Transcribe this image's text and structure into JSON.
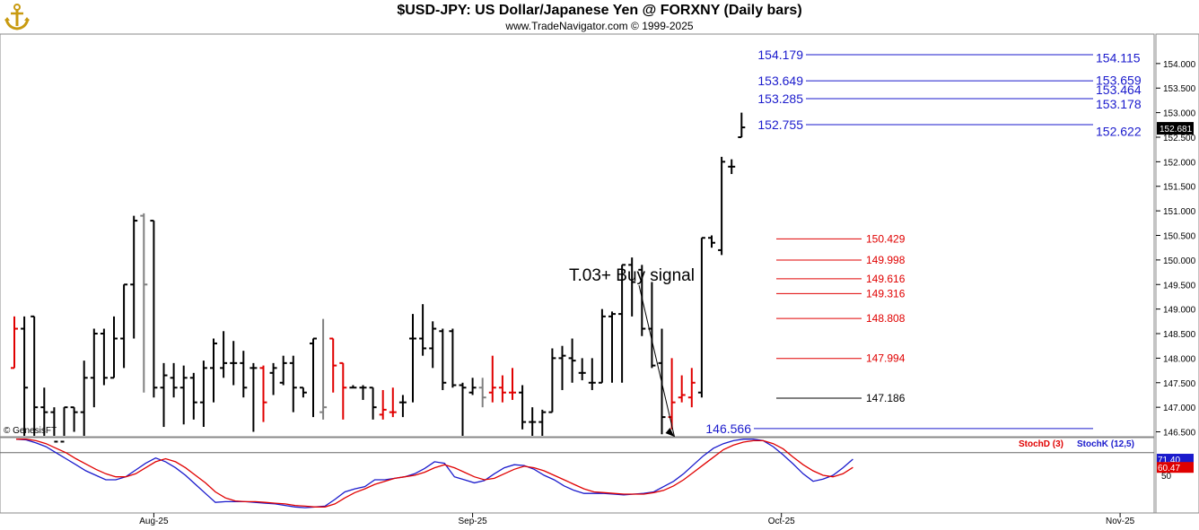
{
  "header": {
    "title": "$USD-JPY:  US Dollar/Japanese Yen @ FORXNY  (Daily bars)",
    "subtitle": "www.TradeNavigator.com © 1999-2025",
    "logo_icon": "trade-navigator-anchor-logo"
  },
  "chart_data": [
    {
      "type": "ohlc",
      "title": "$USD-JPY:  US Dollar/Japanese Yen @ FORXNY  (Daily bars)",
      "watermark": "© GenesisFT",
      "x_ticks": [
        "Aug-25",
        "Sep-25",
        "Oct-25",
        "Nov-25"
      ],
      "y_ticks": [
        "146.500",
        "147.000",
        "147.500",
        "148.000",
        "148.500",
        "149.000",
        "149.500",
        "150.000",
        "150.500",
        "151.000",
        "151.500",
        "152.000",
        "152.500",
        "153.000",
        "153.500",
        "154.000"
      ],
      "ylim": [
        146.4,
        154.6
      ],
      "last_price": "152.681",
      "colors": {
        "up": "#000000",
        "down_signal": "#e00000",
        "neutral": "#808080",
        "fib": "#1a1acc",
        "target": "#e00000"
      },
      "bars": [
        {
          "o": 147.8,
          "h": 148.85,
          "l": 147.8,
          "c": 148.6,
          "color": "red"
        },
        {
          "o": 148.6,
          "h": 148.85,
          "l": 146.2,
          "c": 147.4,
          "color": "black"
        },
        {
          "o": 148.85,
          "h": 148.85,
          "l": 146.2,
          "c": 147.0,
          "color": "black"
        },
        {
          "o": 147.0,
          "h": 147.4,
          "l": 146.3,
          "c": 146.9,
          "color": "black"
        },
        {
          "o": 146.9,
          "h": 147.0,
          "l": 145.9,
          "c": 146.3,
          "color": "black"
        },
        {
          "o": 146.3,
          "h": 147.0,
          "l": 146.3,
          "c": 147.0,
          "color": "black"
        },
        {
          "o": 147.0,
          "h": 147.0,
          "l": 146.5,
          "c": 146.9,
          "color": "black"
        },
        {
          "o": 146.9,
          "h": 147.95,
          "l": 146.4,
          "c": 147.6,
          "color": "black"
        },
        {
          "o": 147.6,
          "h": 148.6,
          "l": 147.0,
          "c": 148.5,
          "color": "black"
        },
        {
          "o": 148.5,
          "h": 148.6,
          "l": 147.45,
          "c": 147.6,
          "color": "black"
        },
        {
          "o": 147.6,
          "h": 148.85,
          "l": 147.6,
          "c": 148.4,
          "color": "black"
        },
        {
          "o": 148.4,
          "h": 149.5,
          "l": 147.8,
          "c": 149.5,
          "color": "black"
        },
        {
          "o": 149.5,
          "h": 150.9,
          "l": 148.4,
          "c": 150.8,
          "color": "black"
        },
        {
          "o": 150.9,
          "h": 150.95,
          "l": 147.3,
          "c": 149.5,
          "color": "gray"
        },
        {
          "o": 150.8,
          "h": 150.8,
          "l": 147.2,
          "c": 147.4,
          "color": "black"
        },
        {
          "o": 147.4,
          "h": 147.9,
          "l": 146.6,
          "c": 147.65,
          "color": "black"
        },
        {
          "o": 147.6,
          "h": 147.9,
          "l": 147.2,
          "c": 147.4,
          "color": "black"
        },
        {
          "o": 147.4,
          "h": 147.85,
          "l": 146.65,
          "c": 147.6,
          "color": "black"
        },
        {
          "o": 147.6,
          "h": 147.7,
          "l": 146.75,
          "c": 147.1,
          "color": "black"
        },
        {
          "o": 147.1,
          "h": 147.95,
          "l": 146.6,
          "c": 147.8,
          "color": "black"
        },
        {
          "o": 147.8,
          "h": 148.4,
          "l": 147.1,
          "c": 148.3,
          "color": "black"
        },
        {
          "o": 147.8,
          "h": 148.55,
          "l": 147.6,
          "c": 147.9,
          "color": "black"
        },
        {
          "o": 147.9,
          "h": 148.35,
          "l": 147.45,
          "c": 147.9,
          "color": "black"
        },
        {
          "o": 147.9,
          "h": 148.15,
          "l": 147.2,
          "c": 147.4,
          "color": "black"
        },
        {
          "o": 147.8,
          "h": 147.9,
          "l": 146.5,
          "c": 147.8,
          "color": "black"
        },
        {
          "o": 147.8,
          "h": 147.85,
          "l": 146.7,
          "c": 147.1,
          "color": "red"
        },
        {
          "o": 147.7,
          "h": 147.9,
          "l": 147.25,
          "c": 147.8,
          "color": "black"
        },
        {
          "o": 147.5,
          "h": 148.05,
          "l": 147.45,
          "c": 147.9,
          "color": "black"
        },
        {
          "o": 147.9,
          "h": 148.05,
          "l": 146.9,
          "c": 147.4,
          "color": "black"
        },
        {
          "o": 147.4,
          "h": 147.4,
          "l": 147.2,
          "c": 147.3,
          "color": "black"
        },
        {
          "o": 148.3,
          "h": 148.4,
          "l": 146.8,
          "c": 148.4,
          "color": "black"
        },
        {
          "o": 146.9,
          "h": 148.8,
          "l": 146.75,
          "c": 147.0,
          "color": "gray"
        },
        {
          "o": 148.4,
          "h": 148.4,
          "l": 147.3,
          "c": 147.85,
          "color": "red"
        },
        {
          "o": 147.9,
          "h": 147.9,
          "l": 146.75,
          "c": 147.4,
          "color": "red"
        },
        {
          "o": 147.4,
          "h": 147.45,
          "l": 147.4,
          "c": 147.4,
          "color": "black"
        },
        {
          "o": 147.4,
          "h": 147.45,
          "l": 147.15,
          "c": 147.4,
          "color": "black"
        },
        {
          "o": 147.4,
          "h": 147.4,
          "l": 146.75,
          "c": 147.0,
          "color": "black"
        },
        {
          "o": 146.85,
          "h": 147.35,
          "l": 146.75,
          "c": 146.95,
          "color": "red"
        },
        {
          "o": 146.9,
          "h": 147.4,
          "l": 146.8,
          "c": 146.9,
          "color": "red"
        },
        {
          "o": 147.1,
          "h": 147.25,
          "l": 146.8,
          "c": 147.1,
          "color": "black"
        },
        {
          "o": 148.4,
          "h": 148.9,
          "l": 147.1,
          "c": 148.4,
          "color": "black"
        },
        {
          "o": 148.4,
          "h": 149.1,
          "l": 148.05,
          "c": 148.2,
          "color": "black"
        },
        {
          "o": 148.2,
          "h": 148.75,
          "l": 147.8,
          "c": 148.6,
          "color": "black"
        },
        {
          "o": 148.55,
          "h": 148.6,
          "l": 147.35,
          "c": 147.5,
          "color": "black"
        },
        {
          "o": 148.55,
          "h": 148.6,
          "l": 147.4,
          "c": 147.45,
          "color": "black"
        },
        {
          "o": 147.45,
          "h": 147.5,
          "l": 146.4,
          "c": 147.4,
          "color": "black"
        },
        {
          "o": 147.3,
          "h": 147.6,
          "l": 147.25,
          "c": 147.4,
          "color": "black"
        },
        {
          "o": 147.4,
          "h": 147.6,
          "l": 147.0,
          "c": 147.2,
          "color": "gray"
        },
        {
          "o": 147.3,
          "h": 148.05,
          "l": 147.1,
          "c": 147.4,
          "color": "red"
        },
        {
          "o": 147.4,
          "h": 147.65,
          "l": 147.1,
          "c": 147.3,
          "color": "red"
        },
        {
          "o": 147.3,
          "h": 147.8,
          "l": 147.15,
          "c": 147.3,
          "color": "red"
        },
        {
          "o": 147.3,
          "h": 147.45,
          "l": 146.55,
          "c": 146.7,
          "color": "black"
        },
        {
          "o": 146.7,
          "h": 147.0,
          "l": 146.35,
          "c": 146.7,
          "color": "black"
        },
        {
          "o": 146.7,
          "h": 146.95,
          "l": 146.4,
          "c": 146.9,
          "color": "black"
        },
        {
          "o": 146.9,
          "h": 148.2,
          "l": 146.9,
          "c": 148.0,
          "color": "black"
        },
        {
          "o": 148.0,
          "h": 148.25,
          "l": 147.35,
          "c": 148.05,
          "color": "black"
        },
        {
          "o": 148.0,
          "h": 148.4,
          "l": 147.5,
          "c": 147.95,
          "color": "black"
        },
        {
          "o": 147.7,
          "h": 148.0,
          "l": 147.55,
          "c": 147.7,
          "color": "black"
        },
        {
          "o": 147.5,
          "h": 148.0,
          "l": 147.35,
          "c": 147.5,
          "color": "black"
        },
        {
          "o": 147.5,
          "h": 149.0,
          "l": 147.5,
          "c": 148.85,
          "color": "black"
        },
        {
          "o": 148.85,
          "h": 148.95,
          "l": 147.5,
          "c": 148.9,
          "color": "black"
        },
        {
          "o": 148.9,
          "h": 149.9,
          "l": 147.5,
          "c": 149.9,
          "color": "black"
        },
        {
          "o": 149.9,
          "h": 150.05,
          "l": 148.85,
          "c": 149.55,
          "color": "black"
        },
        {
          "o": 149.8,
          "h": 149.9,
          "l": 148.45,
          "c": 148.6,
          "color": "black"
        },
        {
          "o": 148.6,
          "h": 149.55,
          "l": 147.8,
          "c": 147.85,
          "color": "black"
        },
        {
          "o": 147.9,
          "h": 148.6,
          "l": 146.45,
          "c": 146.8,
          "color": "black"
        },
        {
          "o": 146.8,
          "h": 148.0,
          "l": 146.55,
          "c": 147.1,
          "color": "red"
        },
        {
          "o": 147.2,
          "h": 147.65,
          "l": 147.1,
          "c": 147.25,
          "color": "red"
        },
        {
          "o": 147.2,
          "h": 147.8,
          "l": 147.0,
          "c": 147.5,
          "color": "red"
        },
        {
          "o": 147.3,
          "h": 150.45,
          "l": 147.2,
          "c": 150.45,
          "color": "black"
        },
        {
          "o": 150.45,
          "h": 150.5,
          "l": 150.25,
          "c": 150.35,
          "color": "black"
        },
        {
          "o": 150.2,
          "h": 152.1,
          "l": 150.1,
          "c": 152.0,
          "color": "black"
        },
        {
          "o": 151.9,
          "h": 152.05,
          "l": 151.75,
          "c": 151.9,
          "color": "black"
        },
        {
          "o": 152.5,
          "h": 153.0,
          "l": 152.5,
          "c": 152.7,
          "color": "black"
        }
      ],
      "fib_levels": [
        {
          "label": "154.179",
          "value": 154.179,
          "side": "left"
        },
        {
          "label": "154.115",
          "value": 154.115,
          "side": "right"
        },
        {
          "label": "153.649",
          "value": 153.649,
          "side": "left"
        },
        {
          "label": "153.659",
          "value": 153.659,
          "side": "right"
        },
        {
          "label": "153.464",
          "value": 153.464,
          "side": "right"
        },
        {
          "label": "153.285",
          "value": 153.285,
          "side": "left"
        },
        {
          "label": "153.178",
          "value": 153.178,
          "side": "right"
        },
        {
          "label": "152.755",
          "value": 152.755,
          "side": "left"
        },
        {
          "label": "152.622",
          "value": 152.622,
          "side": "right"
        },
        {
          "label": "146.566",
          "value": 146.566,
          "side": "left"
        }
      ],
      "target_levels": [
        {
          "label": "150.429",
          "value": 150.429
        },
        {
          "label": "149.998",
          "value": 149.998
        },
        {
          "label": "149.616",
          "value": 149.616
        },
        {
          "label": "149.316",
          "value": 149.316
        },
        {
          "label": "148.808",
          "value": 148.808
        },
        {
          "label": "147.994",
          "value": 147.994
        },
        {
          "label": "147.186",
          "value": 147.186
        }
      ],
      "annotation": {
        "text": "T.03+ Buy signal",
        "bar_index": 65
      }
    },
    {
      "type": "line",
      "title": "",
      "legend": [
        {
          "label": "StochD (3)",
          "color": "#e00000"
        },
        {
          "label": "StochK (12,5)",
          "color": "#1a1acc"
        }
      ],
      "y_ticks": [
        "50"
      ],
      "ylim": [
        0,
        100
      ],
      "reference_line": 80,
      "last_values": {
        "k": "71.40",
        "d": "60.47"
      },
      "series": [
        {
          "name": "StochK (12,5)",
          "color": "#1a1acc",
          "values": [
            98,
            97,
            93,
            88,
            80,
            72,
            64,
            56,
            50,
            44,
            44,
            48,
            57,
            66,
            73,
            68,
            60,
            50,
            38,
            26,
            14,
            15,
            15,
            15,
            14,
            13,
            12,
            10,
            8,
            7,
            8,
            9,
            18,
            28,
            32,
            35,
            44,
            44,
            46,
            48,
            52,
            59,
            68,
            66,
            48,
            44,
            40,
            43,
            52,
            60,
            64,
            63,
            58,
            50,
            44,
            36,
            30,
            26,
            26,
            26,
            25,
            24,
            25,
            26,
            28,
            35,
            42,
            52,
            64,
            76,
            86,
            92,
            96,
            98,
            98,
            96,
            88,
            77,
            65,
            52,
            42,
            45,
            50,
            60,
            71.4
          ]
        },
        {
          "name": "StochD (3)",
          "color": "#e00000",
          "values": [
            98,
            98,
            96,
            92,
            86,
            80,
            72,
            65,
            58,
            52,
            48,
            48,
            52,
            60,
            68,
            72,
            68,
            60,
            50,
            40,
            28,
            20,
            16,
            15,
            15,
            14,
            13,
            12,
            10,
            9,
            8,
            8,
            12,
            20,
            27,
            32,
            38,
            42,
            46,
            48,
            50,
            54,
            60,
            64,
            60,
            54,
            48,
            44,
            46,
            52,
            58,
            62,
            60,
            56,
            50,
            44,
            38,
            32,
            28,
            27,
            26,
            25,
            25,
            25,
            27,
            30,
            36,
            44,
            54,
            64,
            74,
            84,
            90,
            94,
            96,
            96,
            92,
            85,
            74,
            64,
            56,
            50,
            48,
            52,
            60.47
          ]
        }
      ]
    }
  ]
}
